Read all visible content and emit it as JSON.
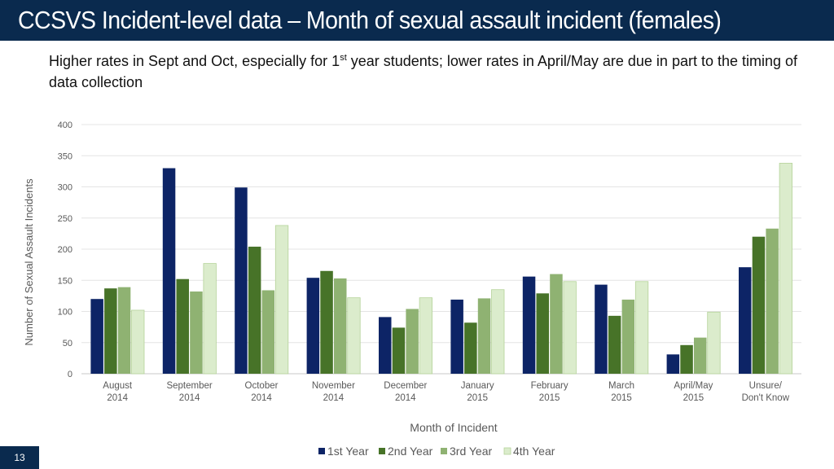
{
  "header": {
    "title": "CCSVS Incident-level data – Month of sexual assault incident (females)",
    "subtitle_pre": "Higher rates in Sept and Oct, especially for 1",
    "subtitle_sup": "st",
    "subtitle_post": " year students; lower rates in April/May are due in part to the timing of data collection"
  },
  "footer": {
    "slide_number": "13"
  },
  "chart_data": {
    "type": "bar",
    "title": "",
    "xlabel": "Month of Incident",
    "ylabel": "Number of Sexual Assault Incidents",
    "ylim": [
      0,
      400
    ],
    "yticks": [
      0,
      50,
      100,
      150,
      200,
      250,
      300,
      350,
      400
    ],
    "grid": true,
    "legend_position": "bottom",
    "categories": [
      [
        "August",
        "2014"
      ],
      [
        "September",
        "2014"
      ],
      [
        "October",
        "2014"
      ],
      [
        "November",
        "2014"
      ],
      [
        "December",
        "2014"
      ],
      [
        "January",
        "2015"
      ],
      [
        "February",
        "2015"
      ],
      [
        "March",
        "2015"
      ],
      [
        "April/May",
        "2015"
      ],
      [
        "Unsure/",
        "Don't Know"
      ]
    ],
    "series": [
      {
        "name": "1st Year",
        "color": "#0d2466",
        "values": [
          120,
          330,
          299,
          154,
          91,
          119,
          156,
          143,
          31,
          171
        ]
      },
      {
        "name": "2nd Year",
        "color": "#477328",
        "values": [
          137,
          152,
          204,
          165,
          74,
          82,
          129,
          93,
          46,
          220
        ]
      },
      {
        "name": "3rd Year",
        "color": "#8fb272",
        "values": [
          139,
          132,
          134,
          153,
          104,
          121,
          160,
          119,
          58,
          233
        ]
      },
      {
        "name": "4th Year",
        "color": "#dbeccc",
        "values": [
          102,
          177,
          238,
          122,
          122,
          135,
          148,
          148,
          99,
          338
        ]
      }
    ]
  }
}
